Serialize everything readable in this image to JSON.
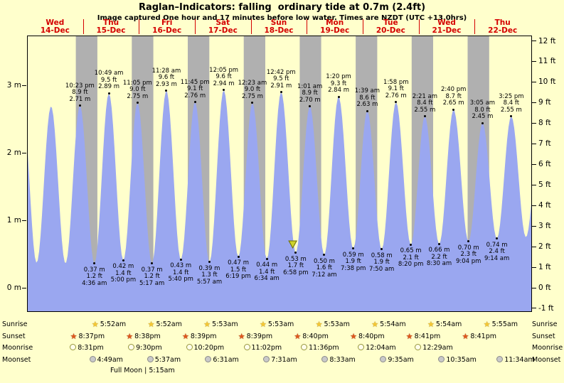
{
  "chart_data": {
    "type": "area",
    "title": "Raglan–Indicators: falling  ordinary tide at 0.7m (2.4ft)",
    "subtitle": "Image captured One hour and 17 minutes before low water. Times are NZDT (UTC +13.0hrs)",
    "x_axis": {
      "days": [
        {
          "name": "Wed",
          "date": "14-Dec"
        },
        {
          "name": "Thu",
          "date": "15-Dec"
        },
        {
          "name": "Fri",
          "date": "16-Dec"
        },
        {
          "name": "Sat",
          "date": "17-Dec"
        },
        {
          "name": "Sun",
          "date": "18-Dec"
        },
        {
          "name": "Mon",
          "date": "19-Dec"
        },
        {
          "name": "Tue",
          "date": "20-Dec"
        },
        {
          "name": "Wed",
          "date": "21-Dec"
        },
        {
          "name": "Thu",
          "date": "22-Dec"
        }
      ],
      "hours_total": 216
    },
    "y_axis_left": {
      "unit": "m",
      "ticks": [
        0,
        1,
        2,
        3
      ]
    },
    "y_axis_right": {
      "unit": "ft",
      "ticks": [
        -1,
        0,
        1,
        2,
        3,
        4,
        5,
        6,
        7,
        8,
        9,
        10,
        11,
        12
      ]
    },
    "ylim_m": [
      -0.34,
      3.74
    ],
    "grid": false,
    "legend": false,
    "tides": [
      {
        "kind": "high",
        "day": 0,
        "time": "10:23 pm",
        "ft": "8.9 ft",
        "m": "2.71 m"
      },
      {
        "kind": "low",
        "day": 1,
        "time": "4:36 am",
        "ft": "1.2 ft",
        "m": "0.37 m"
      },
      {
        "kind": "high",
        "day": 1,
        "time": "10:49 am",
        "ft": "9.5 ft",
        "m": "2.89 m"
      },
      {
        "kind": "low",
        "day": 1,
        "time": "5:00 pm",
        "ft": "1.4 ft",
        "m": "0.42 m"
      },
      {
        "kind": "high",
        "day": 1,
        "time": "11:05 pm",
        "ft": "9.0 ft",
        "m": "2.75 m"
      },
      {
        "kind": "low",
        "day": 2,
        "time": "5:17 am",
        "ft": "1.2 ft",
        "m": "0.37 m"
      },
      {
        "kind": "high",
        "day": 2,
        "time": "11:28 am",
        "ft": "9.6 ft",
        "m": "2.93 m"
      },
      {
        "kind": "low",
        "day": 2,
        "time": "5:40 pm",
        "ft": "1.4 ft",
        "m": "0.43 m"
      },
      {
        "kind": "high",
        "day": 2,
        "time": "11:45 pm",
        "ft": "9.1 ft",
        "m": "2.76 m"
      },
      {
        "kind": "low",
        "day": 3,
        "time": "5:57 am",
        "ft": "1.3 ft",
        "m": "0.39 m"
      },
      {
        "kind": "high",
        "day": 3,
        "time": "12:05 pm",
        "ft": "9.6 ft",
        "m": "2.94 m"
      },
      {
        "kind": "low",
        "day": 3,
        "time": "6:19 pm",
        "ft": "1.5 ft",
        "m": "0.47 m"
      },
      {
        "kind": "high",
        "day": 4,
        "time": "12:23 am",
        "ft": "9.0 ft",
        "m": "2.75 m"
      },
      {
        "kind": "low",
        "day": 4,
        "time": "6:34 am",
        "ft": "1.4 ft",
        "m": "0.44 m"
      },
      {
        "kind": "high",
        "day": 4,
        "time": "12:42 pm",
        "ft": "9.5 ft",
        "m": "2.91 m"
      },
      {
        "kind": "low",
        "day": 4,
        "time": "6:58 pm",
        "ft": "1.7 ft",
        "m": "0.53 m"
      },
      {
        "kind": "high",
        "day": 5,
        "time": "1:01 am",
        "ft": "8.9 ft",
        "m": "2.70 m"
      },
      {
        "kind": "low",
        "day": 5,
        "time": "7:12 am",
        "ft": "1.6 ft",
        "m": "0.50 m"
      },
      {
        "kind": "high",
        "day": 5,
        "time": "1:20 pm",
        "ft": "9.3 ft",
        "m": "2.84 m"
      },
      {
        "kind": "low",
        "day": 5,
        "time": "7:38 pm",
        "ft": "1.9 ft",
        "m": "0.59 m"
      },
      {
        "kind": "high",
        "day": 6,
        "time": "1:39 am",
        "ft": "8.6 ft",
        "m": "2.63 m"
      },
      {
        "kind": "low",
        "day": 6,
        "time": "7:50 am",
        "ft": "1.9 ft",
        "m": "0.58 m"
      },
      {
        "kind": "high",
        "day": 6,
        "time": "1:58 pm",
        "ft": "9.1 ft",
        "m": "2.76 m"
      },
      {
        "kind": "low",
        "day": 6,
        "time": "8:20 pm",
        "ft": "2.1 ft",
        "m": "0.65 m"
      },
      {
        "kind": "high",
        "day": 7,
        "time": "2:21 am",
        "ft": "8.4 ft",
        "m": "2.55 m"
      },
      {
        "kind": "low",
        "day": 7,
        "time": "8:30 am",
        "ft": "2.2 ft",
        "m": "0.66 m"
      },
      {
        "kind": "high",
        "day": 7,
        "time": "2:40 pm",
        "ft": "8.7 ft",
        "m": "2.65 m"
      },
      {
        "kind": "low",
        "day": 7,
        "time": "9:04 pm",
        "ft": "2.3 ft",
        "m": "0.70 m"
      },
      {
        "kind": "high",
        "day": 8,
        "time": "3:05 am",
        "ft": "8.0 ft",
        "m": "2.45 m"
      },
      {
        "kind": "low",
        "day": 8,
        "time": "9:14 am",
        "ft": "2.4 ft",
        "m": "0.74 m"
      },
      {
        "kind": "high",
        "day": 8,
        "time": "3:25 pm",
        "ft": "8.4 ft",
        "m": "2.55 m"
      }
    ],
    "edge_curve_estimate": {
      "pre": [
        {
          "t": -2.2,
          "h": 2.7
        },
        {
          "t": 3.8,
          "h": 0.38
        },
        {
          "t": 10,
          "h": 2.7
        },
        {
          "t": 16.2,
          "h": 0.37
        }
      ],
      "post": [
        {
          "t": 213.7,
          "h": 0.76
        },
        {
          "t": 219.9,
          "h": 2.4
        }
      ]
    },
    "now_marker": {
      "t": 113.68,
      "tip_h": 0.6
    }
  },
  "astro": {
    "rows": [
      {
        "label": "Sunrise",
        "icon": "sunrise",
        "entries": [
          {
            "day": 1,
            "time": "5:52am"
          },
          {
            "day": 2,
            "time": "5:52am"
          },
          {
            "day": 3,
            "time": "5:53am"
          },
          {
            "day": 4,
            "time": "5:53am"
          },
          {
            "day": 5,
            "time": "5:53am"
          },
          {
            "day": 6,
            "time": "5:54am"
          },
          {
            "day": 7,
            "time": "5:54am"
          },
          {
            "day": 8,
            "time": "5:55am"
          }
        ]
      },
      {
        "label": "Sunset",
        "icon": "sunset",
        "entries": [
          {
            "day": 0,
            "time": "8:37pm"
          },
          {
            "day": 1,
            "time": "8:38pm"
          },
          {
            "day": 2,
            "time": "8:39pm"
          },
          {
            "day": 3,
            "time": "8:39pm"
          },
          {
            "day": 4,
            "time": "8:40pm"
          },
          {
            "day": 5,
            "time": "8:40pm"
          },
          {
            "day": 6,
            "time": "8:41pm"
          },
          {
            "day": 7,
            "time": "8:41pm"
          }
        ]
      },
      {
        "label": "Moonrise",
        "icon": "moonrise",
        "entries": [
          {
            "day": 0,
            "time": "8:31pm"
          },
          {
            "day": 1,
            "time": "9:30pm"
          },
          {
            "day": 2,
            "time": "10:20pm"
          },
          {
            "day": 3,
            "time": "11:02pm"
          },
          {
            "day": 4,
            "time": "11:36pm"
          },
          {
            "day": 6,
            "time": "12:04am"
          },
          {
            "day": 7,
            "time": "12:29am"
          }
        ]
      },
      {
        "label": "Moonset",
        "icon": "moonset",
        "entries": [
          {
            "day": 1,
            "time": "4:49am"
          },
          {
            "day": 2,
            "time": "5:37am"
          },
          {
            "day": 3,
            "time": "6:31am"
          },
          {
            "day": 4,
            "time": "7:31am"
          },
          {
            "day": 5,
            "time": "8:33am"
          },
          {
            "day": 6,
            "time": "9:35am"
          },
          {
            "day": 7,
            "time": "10:35am"
          },
          {
            "day": 8,
            "time": "11:34am"
          }
        ]
      }
    ],
    "full_moon": "Full Moon | 5:15am"
  },
  "colors": {
    "background": "#ffffcc",
    "night_band": "#b0b0b0",
    "tide_fill": "#9aa7f0",
    "day_label": "#d40000",
    "marker_fill": "#cdd22b",
    "marker_stroke": "#6b6b00",
    "axis": "#000000"
  }
}
